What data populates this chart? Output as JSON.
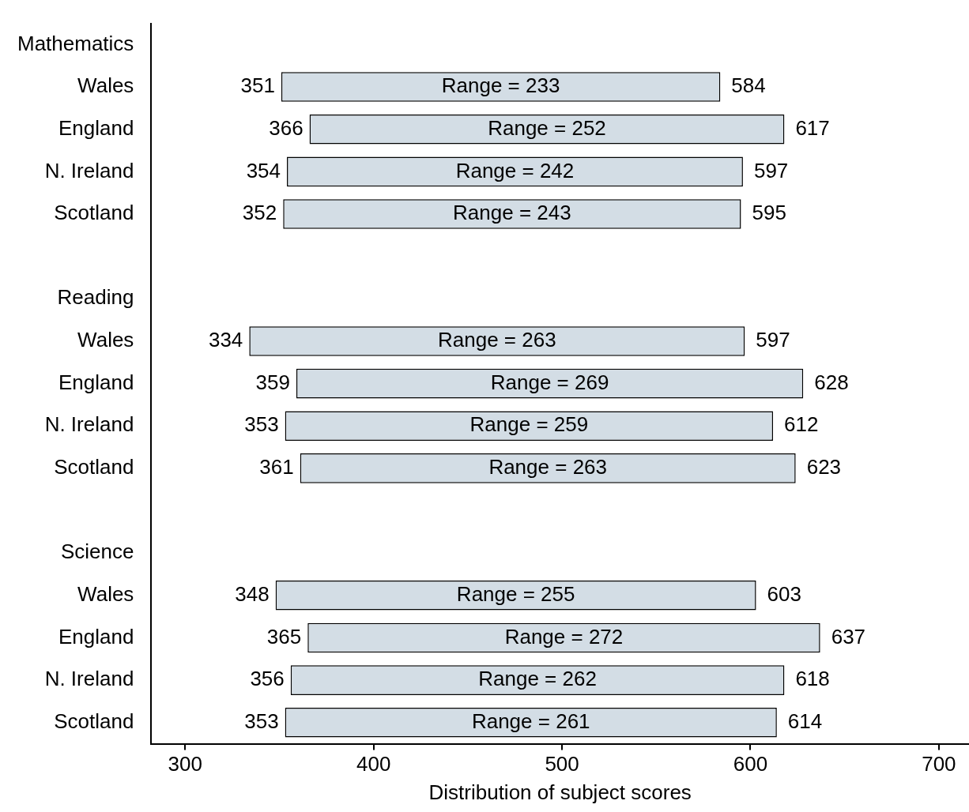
{
  "chart_data": {
    "type": "bar",
    "orientation": "horizontal",
    "xlabel": "Distribution of subject scores",
    "categories": [
      "Mathematics",
      "Wales",
      "England",
      "N. Ireland",
      "Scotland",
      null,
      "Reading",
      "Wales",
      "England",
      "N. Ireland",
      "Scotland",
      null,
      "Science",
      "Wales",
      "England",
      "N. Ireland",
      "Scotland"
    ],
    "base": [
      null,
      351,
      366,
      354,
      352,
      null,
      null,
      334,
      359,
      353,
      361,
      null,
      null,
      348,
      365,
      356,
      353
    ],
    "values": [
      null,
      233,
      252,
      242,
      243,
      null,
      null,
      263,
      269,
      259,
      263,
      null,
      null,
      255,
      272,
      262,
      261
    ],
    "value_labels": [
      null,
      "Range = 233",
      "Range = 252",
      "Range = 242",
      "Range = 243",
      null,
      null,
      "Range = 263",
      "Range = 269",
      "Range = 259",
      "Range = 263",
      null,
      null,
      "Range = 255",
      "Range = 272",
      "Range = 262",
      "Range = 261"
    ],
    "annotations": [
      "351",
      "584",
      "366",
      "617",
      "354",
      "597",
      "352",
      "595",
      "334",
      "597",
      "359",
      "628",
      "353",
      "612",
      "361",
      "623",
      "348",
      "603",
      "365",
      "637",
      "356",
      "618",
      "353",
      "614"
    ],
    "color": "#d3dde5",
    "xlim": [
      282,
      716
    ],
    "xticks": [
      300,
      400,
      500,
      600,
      700
    ],
    "grid": false,
    "legend": false
  }
}
